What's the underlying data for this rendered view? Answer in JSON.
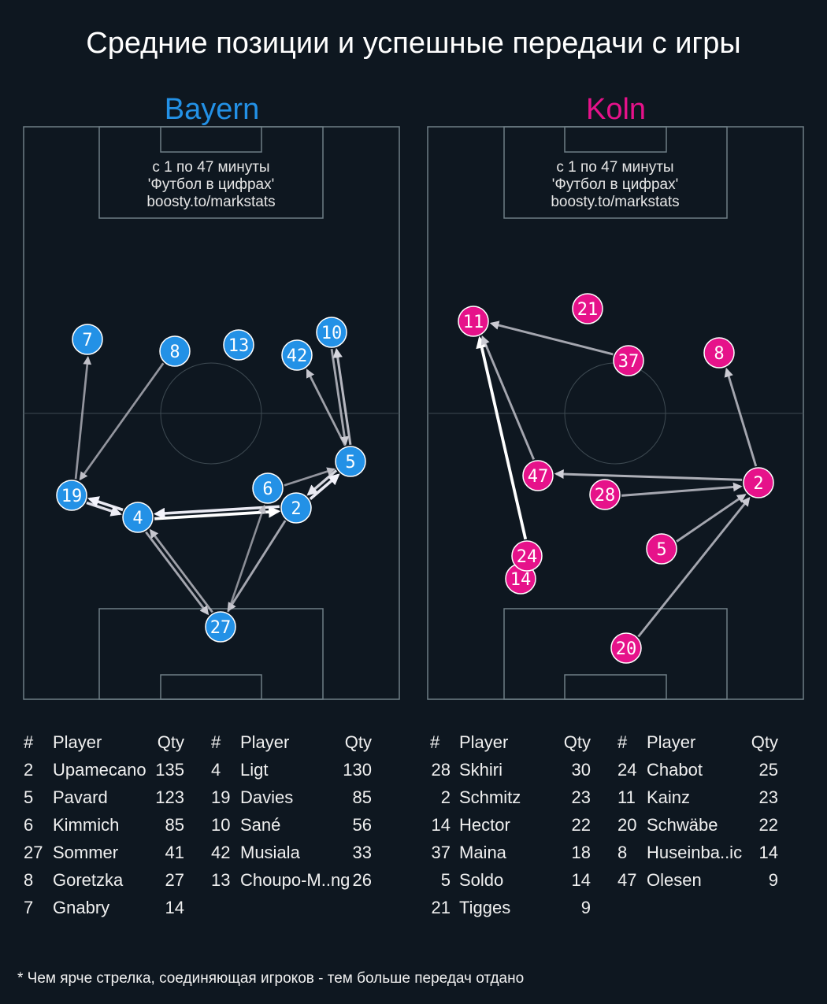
{
  "title": "Средние позиции и успешные передачи с игры",
  "teams": [
    {
      "id": "bayern",
      "name": "Bayern",
      "color": "#2391e6",
      "credit": [
        "с 1 по 47 минуты",
        "'Футбол в цифрах'",
        "boosty.to/markstats"
      ],
      "players": [
        {
          "num": "7"
        },
        {
          "num": "8"
        },
        {
          "num": "13"
        },
        {
          "num": "42"
        },
        {
          "num": "10"
        },
        {
          "num": "5"
        },
        {
          "num": "6"
        },
        {
          "num": "19"
        },
        {
          "num": "4"
        },
        {
          "num": "2"
        },
        {
          "num": "27"
        }
      ],
      "passes": [
        {
          "from": "19",
          "to": "7",
          "intensity": 0.45
        },
        {
          "from": "8",
          "to": "19",
          "intensity": 0.45
        },
        {
          "from": "5",
          "to": "42",
          "intensity": 0.5
        },
        {
          "from": "5",
          "to": "10",
          "intensity": 0.65
        },
        {
          "from": "10",
          "to": "5",
          "intensity": 0.55
        },
        {
          "from": "6",
          "to": "5",
          "intensity": 0.45
        },
        {
          "from": "2",
          "to": "5",
          "intensity": 0.9
        },
        {
          "from": "5",
          "to": "2",
          "intensity": 0.8
        },
        {
          "from": "19",
          "to": "4",
          "intensity": 0.85
        },
        {
          "from": "4",
          "to": "19",
          "intensity": 0.9
        },
        {
          "from": "4",
          "to": "2",
          "intensity": 1.0
        },
        {
          "from": "2",
          "to": "4",
          "intensity": 0.9
        },
        {
          "from": "4",
          "to": "27",
          "intensity": 0.55
        },
        {
          "from": "27",
          "to": "4",
          "intensity": 0.5
        },
        {
          "from": "2",
          "to": "27",
          "intensity": 0.55
        },
        {
          "from": "27",
          "to": "6",
          "intensity": 0.4
        }
      ],
      "table_header": {
        "num": "#",
        "player": "Player",
        "qty": "Qty"
      },
      "table_left": [
        {
          "num": "2",
          "player": "Upamecano",
          "qty": "135"
        },
        {
          "num": "5",
          "player": "Pavard",
          "qty": "123"
        },
        {
          "num": "6",
          "player": "Kimmich",
          "qty": "85"
        },
        {
          "num": "27",
          "player": "Sommer",
          "qty": "41"
        },
        {
          "num": "8",
          "player": "Goretzka",
          "qty": "27"
        },
        {
          "num": "7",
          "player": "Gnabry",
          "qty": "14"
        }
      ],
      "table_right": [
        {
          "num": "4",
          "player": "Ligt",
          "qty": "130"
        },
        {
          "num": "19",
          "player": "Davies",
          "qty": "85"
        },
        {
          "num": "10",
          "player": "Sané",
          "qty": "56"
        },
        {
          "num": "42",
          "player": "Musiala",
          "qty": "33"
        },
        {
          "num": "13",
          "player": "Choupo-M..ng",
          "qty": "26"
        }
      ]
    },
    {
      "id": "koln",
      "name": "Koln",
      "color": "#e6128a",
      "credit": [
        "с 1 по 47 минуты",
        "'Футбол в цифрах'",
        "boosty.to/markstats"
      ],
      "players": [
        {
          "num": "21"
        },
        {
          "num": "11"
        },
        {
          "num": "37"
        },
        {
          "num": "8"
        },
        {
          "num": "47"
        },
        {
          "num": "28"
        },
        {
          "num": "2"
        },
        {
          "num": "5"
        },
        {
          "num": "14"
        },
        {
          "num": "24"
        },
        {
          "num": "20"
        }
      ],
      "passes": [
        {
          "from": "37",
          "to": "11",
          "intensity": 0.55
        },
        {
          "from": "24",
          "to": "11",
          "intensity": 1.0
        },
        {
          "from": "47",
          "to": "11",
          "intensity": 0.55
        },
        {
          "from": "2",
          "to": "8",
          "intensity": 0.55
        },
        {
          "from": "2",
          "to": "47",
          "intensity": 0.6
        },
        {
          "from": "28",
          "to": "2",
          "intensity": 0.55
        },
        {
          "from": "5",
          "to": "2",
          "intensity": 0.55
        },
        {
          "from": "20",
          "to": "2",
          "intensity": 0.55
        }
      ],
      "table_header": {
        "num": "#",
        "player": "Player",
        "qty": "Qty"
      },
      "table_left": [
        {
          "num": "28",
          "player": "Skhiri",
          "qty": "30"
        },
        {
          "num": "2",
          "player": "Schmitz",
          "qty": "23"
        },
        {
          "num": "14",
          "player": "Hector",
          "qty": "22"
        },
        {
          "num": "37",
          "player": "Maina",
          "qty": "18"
        },
        {
          "num": "5",
          "player": "Soldo",
          "qty": "14"
        },
        {
          "num": "21",
          "player": "Tigges",
          "qty": "9"
        }
      ],
      "table_right": [
        {
          "num": "24",
          "player": "Chabot",
          "qty": "25"
        },
        {
          "num": "11",
          "player": "Kainz",
          "qty": "23"
        },
        {
          "num": "20",
          "player": "Schwäbe",
          "qty": "22"
        },
        {
          "num": "8",
          "player": "Huseinba..ic",
          "qty": "14"
        },
        {
          "num": "47",
          "player": "Olesen",
          "qty": "9"
        }
      ]
    }
  ],
  "footnote": "* Чем ярче стрелка, соединяющая игроков - тем больше передач отдано"
}
